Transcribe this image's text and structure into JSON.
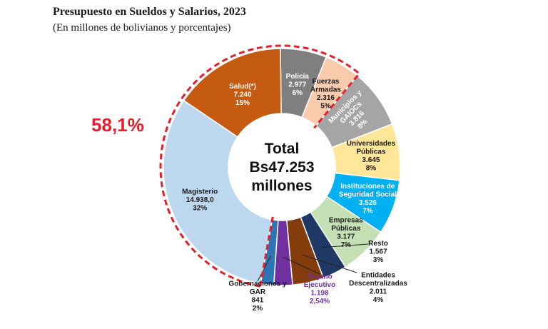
{
  "chart_data": {
    "type": "pie",
    "title": "Presupuesto en Sueldos y Salarios, 2023",
    "subtitle": "(En millones de bolivianos y porcentajes)",
    "highlight_label": "58,1%",
    "center": [
      "Total",
      "Bs47.253",
      "millones"
    ],
    "total": 47253,
    "slices": [
      {
        "name": "Policía",
        "value_text": "2.977",
        "pct_text": "6%",
        "value": 2977,
        "color": "#7f7f7f",
        "text_color": "#ffffff",
        "lines": [
          "Policía",
          "2.977",
          "6%"
        ]
      },
      {
        "name": "Fuerzas Armadas",
        "value_text": "2.316",
        "pct_text": "5%",
        "value": 2316,
        "color": "#f8cbad",
        "text_color": "#1a1a1a",
        "lines": [
          "Fuerzas",
          "Armadas",
          "2.316",
          "5%"
        ]
      },
      {
        "name": "Municipios y GAIOCs",
        "value_text": "3.816",
        "pct_text": "8%",
        "value": 3816,
        "color": "#a5a5a5",
        "text_color": "#ffffff",
        "lines": [
          "Municipios y",
          "GAIOCs",
          "3.816",
          "8%"
        ]
      },
      {
        "name": "Universidades Públicas",
        "value_text": "3.645",
        "pct_text": "8%",
        "value": 3645,
        "color": "#ffe699",
        "text_color": "#1a1a1a",
        "lines": [
          "Universidades",
          "Públicas",
          "3.645",
          "8%"
        ]
      },
      {
        "name": "Instituciones de Seguridad Social",
        "value_text": "3.526",
        "pct_text": "7%",
        "value": 3526,
        "color": "#00b0f0",
        "text_color": "#ffffff",
        "lines": [
          "Instituciones de",
          "Seguridad Social",
          "3.526",
          "7%"
        ]
      },
      {
        "name": "Empresas Públicas",
        "value_text": "3.177",
        "pct_text": "7%",
        "value": 3177,
        "color": "#c5e0b4",
        "text_color": "#1a1a1a",
        "lines": [
          "Empresas",
          "Públicas",
          "3.177",
          "7%"
        ]
      },
      {
        "name": "Resto",
        "value_text": "1.567",
        "pct_text": "3%",
        "value": 1567,
        "color": "#1f3864",
        "text_color": "#1a1a1a",
        "lines": [
          "Resto",
          "1.567",
          "3%"
        ]
      },
      {
        "name": "Entidades Descentralizadas",
        "value_text": "2.011",
        "pct_text": "4%",
        "value": 2011,
        "color": "#843c0c",
        "text_color": "#1a1a1a",
        "lines": [
          "Entidades",
          "Descentralizadas",
          "2.011",
          "4%"
        ]
      },
      {
        "name": "Órgano Ejecutivo",
        "value_text": "1.198",
        "pct_text": "2,54%",
        "value": 1198,
        "color": "#7030a0",
        "text_color": "#7030a0",
        "lines": [
          "Órgano",
          "Ejecutivo",
          "1.198",
          "2,54%"
        ]
      },
      {
        "name": "Gobernaciones y GAR",
        "value_text": "841",
        "pct_text": "2%",
        "value": 841,
        "color": "#2e75b6",
        "text_color": "#1a1a1a",
        "lines": [
          "Gobernaciones y",
          "GAR",
          "841",
          "2%"
        ]
      },
      {
        "name": "Magisterio",
        "value_text": "14.938,0",
        "pct_text": "32%",
        "value": 14938,
        "color": "#bdd7ee",
        "text_color": "#1a1a1a",
        "lines": [
          "Magisterio",
          "14.938,0",
          "32%"
        ]
      },
      {
        "name": "Salud(*)",
        "value_text": "7.240",
        "pct_text": "15%",
        "value": 7240,
        "color": "#c55a11",
        "text_color": "#ffffff",
        "lines": [
          "Salud(*)",
          "7.240",
          "15%"
        ]
      }
    ]
  }
}
